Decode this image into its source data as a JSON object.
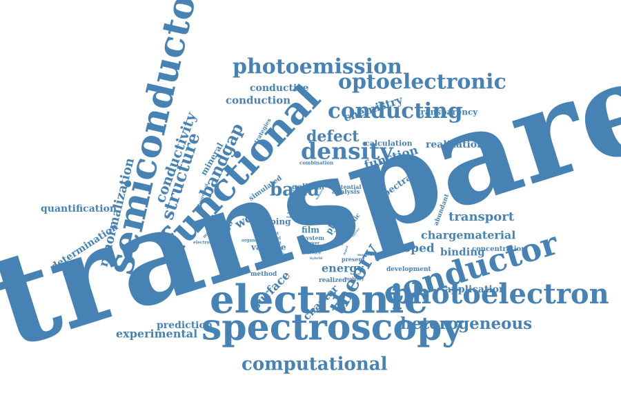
{
  "style": {
    "word_color": "#4682b4",
    "background": "#ffffff"
  },
  "words": {
    "transparent": "transparent",
    "semiconductor": "semiconductor",
    "functional": "functional",
    "electronic": "electronic",
    "spectroscopy": "spectroscopy",
    "conductor": "conductor",
    "photoelectron": "photoelectron",
    "photoemission": "photoemission",
    "optoelectronic": "optoelectronic",
    "conducting": "conducting",
    "density": "density",
    "band": "band",
    "theory": "theory",
    "computational": "computational",
    "heterogeneous": "heterogeneous",
    "structure": "structure",
    "conductivity": "conductivity",
    "bandgap": "bandgap",
    "renormalization": "renormalization",
    "defect": "defect",
    "chemistry": "chemistry",
    "function": "function",
    "conduction": "conduction",
    "conductive": "conductive",
    "transparency": "transparency",
    "calculation": "calculation",
    "realization": "realization",
    "transport": "transport",
    "chargematerial": "chargematerial",
    "doped": "doped",
    "binding": "binding",
    "concentration": "concentration",
    "quantification": "quantification",
    "determination": "determination",
    "mineral": "mineral",
    "strategies": "strategies",
    "combination": "combination",
    "simulated": "simulated",
    "gallium": "gallium",
    "potential": "potential",
    "analysis": "analysis",
    "spectra": "spectra",
    "abundant": "abundant",
    "work": "work",
    "doping": "doping",
    "phase": "phase",
    "znsb2o": "znsb2o",
    "film": "film",
    "system": "system",
    "insight": "insight",
    "valence": "valence",
    "energy": "energy",
    "method": "method",
    "realized": "realized",
    "surface": "surface",
    "chapter": "chapter",
    "application": "application",
    "development": "development",
    "prediction": "prediction",
    "experimental": "experimental",
    "present": "present",
    "superior": "superior",
    "mobility": "mobility",
    "metallic": "metallic",
    "direct": "direct",
    "novel": "novel",
    "result": "result",
    "organic": "organic",
    "electrode": "electrode",
    "mapping": "mapping",
    "theoretical": "theoretical",
    "complex": "complex",
    "power": "power",
    "device": "device",
    "hybrid": "hybrid",
    "type": "type",
    "earth": "earth",
    "modern": "modern",
    "visible": "visible",
    "single": "single",
    "reveal": "reveal",
    "carrier": "carrier",
    "copper": "copper",
    "oxide": "oxide",
    "mass": "mass",
    "core": "core",
    "doped_small": "doped",
    "feature": "feature"
  }
}
